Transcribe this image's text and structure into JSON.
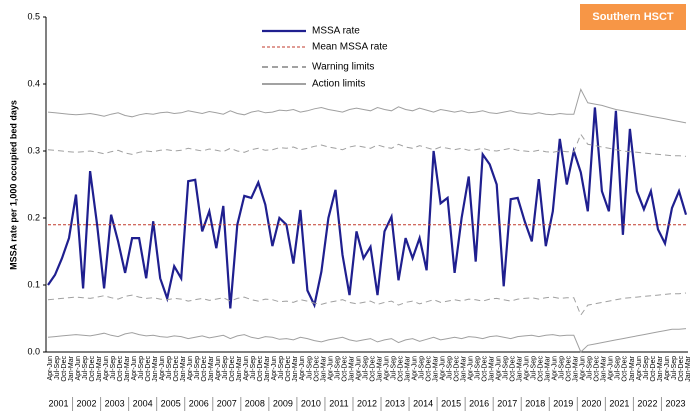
{
  "chart_data": {
    "type": "line",
    "title": "Southern HSCT",
    "ylabel": "MSSA rate per 1,000 occupied bed days",
    "ylim": [
      0,
      0.5
    ],
    "yticks": [
      {
        "value": 0,
        "label": "0.0"
      },
      0.1,
      0.2,
      0.3,
      0.4,
      0.5
    ],
    "grid": false,
    "years": [
      "2001",
      "2002",
      "2003",
      "2004",
      "2005",
      "2006",
      "2007",
      "2008",
      "2009",
      "2010",
      "2011",
      "2012",
      "2013",
      "2014",
      "2015",
      "2016",
      "2017",
      "2018",
      "2019",
      "2020",
      "2021",
      "2022",
      "2023"
    ],
    "categories": [
      "Apr-Jun",
      "Jul-Sep",
      "Oct-Dec",
      "Jan-Mar",
      "Apr-Jun",
      "Jul-Sep",
      "Oct-Dec",
      "Jan-Mar",
      "Apr-Jun",
      "Jul-Sep",
      "Oct-Dec",
      "Jan-Mar",
      "Apr-Jun",
      "Jul-Sep",
      "Oct-Dec",
      "Jan-Mar",
      "Apr-Jun",
      "Jul-Sep",
      "Oct-Dec",
      "Jan-Mar",
      "Apr-Jun",
      "Jul-Sep",
      "Oct-Dec",
      "Jan-Mar",
      "Apr-Jun",
      "Jul-Sep",
      "Oct-Dec",
      "Jan-Mar",
      "Apr-Jun",
      "Jul-Sep",
      "Oct-Dec",
      "Jan-Mar",
      "Apr-Jun",
      "Jul-Sep",
      "Oct-Dec",
      "Jan-Mar",
      "Apr-Jun",
      "Jul-Sep",
      "Oct-Dec",
      "Jan-Mar",
      "Apr-Jun",
      "Jul-Sep",
      "Oct-Dec",
      "Jan-Mar",
      "Apr-Jun",
      "Jul-Sep",
      "Oct-Dec",
      "Jan-Mar",
      "Apr-Jun",
      "Jul-Sep",
      "Oct-Dec",
      "Jan-Mar",
      "Apr-Jun",
      "Jul-Sep",
      "Oct-Dec",
      "Jan-Mar",
      "Apr-Jun",
      "Jul-Sep",
      "Oct-Dec",
      "Jan-Mar",
      "Apr-Jun",
      "Jul-Sep",
      "Oct-Dec",
      "Jan-Mar",
      "Apr-Jun",
      "Jul-Sep",
      "Oct-Dec",
      "Jan-Mar",
      "Apr-Jun",
      "Jul-Sep",
      "Oct-Dec",
      "Jan-Mar",
      "Apr-Jun",
      "Jul-Sep",
      "Oct-Dec",
      "Jan-Mar",
      "Apr-Jun",
      "Jul-Sep",
      "Oct-Dec",
      "Jan-Mar",
      "Apr-Jun",
      "Jul-Sep",
      "Oct-Dec",
      "Jan-Mar",
      "Apr-Jun",
      "Jul-Sep",
      "Oct-Dec",
      "Jan-Mar",
      "Apr-Jun",
      "Jul-Sep",
      "Oct-Dec",
      "Jan-Mar"
    ],
    "series": [
      {
        "name": "MSSA rate",
        "color": "#1f1f8f",
        "values": [
          0.1,
          0.115,
          0.14,
          0.17,
          0.235,
          0.095,
          0.27,
          0.19,
          0.095,
          0.205,
          0.165,
          0.118,
          0.17,
          0.17,
          0.11,
          0.195,
          0.11,
          0.08,
          0.128,
          0.11,
          0.255,
          0.257,
          0.18,
          0.21,
          0.155,
          0.218,
          0.065,
          0.19,
          0.233,
          0.23,
          0.253,
          0.22,
          0.158,
          0.2,
          0.19,
          0.132,
          0.212,
          0.092,
          0.07,
          0.12,
          0.2,
          0.242,
          0.145,
          0.085,
          0.18,
          0.14,
          0.157,
          0.085,
          0.18,
          0.202,
          0.107,
          0.17,
          0.14,
          0.17,
          0.122,
          0.3,
          0.222,
          0.23,
          0.118,
          0.2,
          0.262,
          0.135,
          0.295,
          0.28,
          0.25,
          0.098,
          0.228,
          0.23,
          0.195,
          0.165,
          0.258,
          0.158,
          0.21,
          0.318,
          0.25,
          0.3,
          0.268,
          0.21,
          0.365,
          0.24,
          0.21,
          0.36,
          0.175,
          0.333,
          0.24,
          0.213,
          0.24,
          0.183,
          0.162,
          0.215,
          0.24,
          0.205
        ]
      },
      {
        "name": "Mean MSSA rate",
        "color": "#c0392b",
        "value": 0.19
      },
      {
        "name": "Warning limits",
        "color": "#a0a0a0",
        "legend_color": "#444444",
        "upper": [
          0.302,
          0.301,
          0.3,
          0.299,
          0.298,
          0.299,
          0.3,
          0.298,
          0.296,
          0.299,
          0.301,
          0.297,
          0.295,
          0.298,
          0.3,
          0.299,
          0.301,
          0.302,
          0.3,
          0.301,
          0.304,
          0.302,
          0.3,
          0.303,
          0.301,
          0.299,
          0.304,
          0.3,
          0.298,
          0.302,
          0.304,
          0.301,
          0.302,
          0.305,
          0.304,
          0.306,
          0.302,
          0.304,
          0.307,
          0.309,
          0.306,
          0.304,
          0.302,
          0.306,
          0.308,
          0.306,
          0.304,
          0.309,
          0.306,
          0.304,
          0.31,
          0.306,
          0.304,
          0.308,
          0.305,
          0.302,
          0.306,
          0.304,
          0.302,
          0.304,
          0.301,
          0.302,
          0.304,
          0.301,
          0.3,
          0.302,
          0.304,
          0.301,
          0.3,
          0.299,
          0.301,
          0.299,
          0.298,
          0.3,
          0.299,
          0.299,
          0.325,
          0.31,
          0.308,
          0.306,
          0.304,
          0.302,
          0.3,
          0.299,
          0.298,
          0.297,
          0.296,
          0.295,
          0.294,
          0.293,
          0.293,
          0.292
        ],
        "lower": [
          0.078,
          0.079,
          0.08,
          0.081,
          0.082,
          0.081,
          0.08,
          0.082,
          0.084,
          0.081,
          0.079,
          0.083,
          0.085,
          0.082,
          0.08,
          0.081,
          0.079,
          0.078,
          0.08,
          0.079,
          0.076,
          0.078,
          0.08,
          0.077,
          0.079,
          0.081,
          0.076,
          0.08,
          0.082,
          0.078,
          0.076,
          0.079,
          0.078,
          0.075,
          0.076,
          0.074,
          0.078,
          0.076,
          0.073,
          0.071,
          0.074,
          0.076,
          0.078,
          0.074,
          0.072,
          0.074,
          0.076,
          0.071,
          0.074,
          0.076,
          0.07,
          0.074,
          0.076,
          0.072,
          0.075,
          0.078,
          0.074,
          0.076,
          0.078,
          0.076,
          0.079,
          0.078,
          0.076,
          0.079,
          0.08,
          0.078,
          0.076,
          0.079,
          0.08,
          0.081,
          0.079,
          0.081,
          0.082,
          0.08,
          0.081,
          0.081,
          0.055,
          0.07,
          0.072,
          0.074,
          0.076,
          0.078,
          0.08,
          0.081,
          0.082,
          0.083,
          0.084,
          0.085,
          0.086,
          0.087,
          0.087,
          0.088
        ]
      },
      {
        "name": "Action limits",
        "color": "#a0a0a0",
        "legend_color": "#444444",
        "upper": [
          0.358,
          0.357,
          0.356,
          0.355,
          0.354,
          0.355,
          0.356,
          0.354,
          0.352,
          0.355,
          0.357,
          0.353,
          0.351,
          0.354,
          0.356,
          0.355,
          0.357,
          0.358,
          0.356,
          0.357,
          0.36,
          0.358,
          0.356,
          0.359,
          0.357,
          0.355,
          0.36,
          0.356,
          0.354,
          0.358,
          0.36,
          0.357,
          0.358,
          0.361,
          0.36,
          0.362,
          0.358,
          0.36,
          0.363,
          0.365,
          0.362,
          0.36,
          0.358,
          0.362,
          0.364,
          0.362,
          0.36,
          0.365,
          0.362,
          0.36,
          0.366,
          0.362,
          0.36,
          0.364,
          0.361,
          0.358,
          0.362,
          0.36,
          0.358,
          0.36,
          0.357,
          0.358,
          0.36,
          0.357,
          0.356,
          0.358,
          0.36,
          0.357,
          0.356,
          0.355,
          0.357,
          0.355,
          0.354,
          0.356,
          0.355,
          0.355,
          0.392,
          0.372,
          0.37,
          0.368,
          0.365,
          0.362,
          0.36,
          0.358,
          0.356,
          0.354,
          0.352,
          0.35,
          0.348,
          0.346,
          0.344,
          0.342
        ],
        "lower": [
          0.022,
          0.023,
          0.024,
          0.025,
          0.026,
          0.025,
          0.024,
          0.026,
          0.028,
          0.025,
          0.023,
          0.027,
          0.029,
          0.026,
          0.024,
          0.025,
          0.023,
          0.022,
          0.024,
          0.023,
          0.02,
          0.022,
          0.024,
          0.021,
          0.023,
          0.025,
          0.02,
          0.024,
          0.026,
          0.022,
          0.02,
          0.023,
          0.022,
          0.019,
          0.02,
          0.018,
          0.022,
          0.02,
          0.017,
          0.015,
          0.018,
          0.02,
          0.022,
          0.018,
          0.016,
          0.018,
          0.02,
          0.015,
          0.018,
          0.02,
          0.014,
          0.018,
          0.02,
          0.016,
          0.019,
          0.022,
          0.018,
          0.02,
          0.022,
          0.02,
          0.023,
          0.022,
          0.02,
          0.023,
          0.024,
          0.022,
          0.02,
          0.023,
          0.024,
          0.025,
          0.023,
          0.025,
          0.026,
          0.024,
          0.025,
          0.025,
          0,
          0.01,
          0.012,
          0.014,
          0.016,
          0.018,
          0.02,
          0.022,
          0.024,
          0.026,
          0.028,
          0.03,
          0.032,
          0.034,
          0.034,
          0.035
        ]
      }
    ]
  }
}
